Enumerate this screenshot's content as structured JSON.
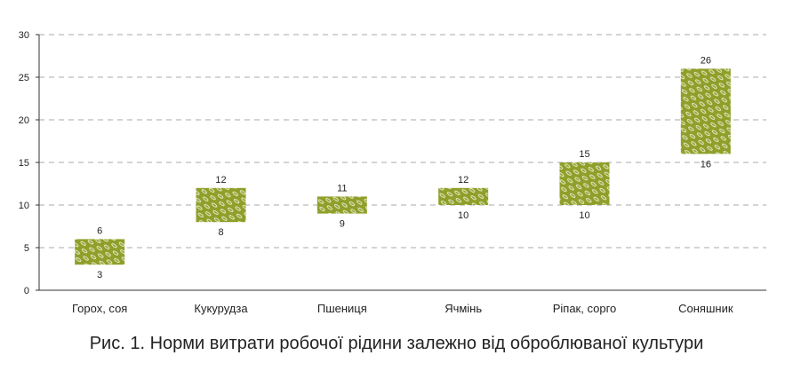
{
  "caption": "Рис. 1. Норми витрати робочої рідини залежно від оброблюваної культури",
  "colors": {
    "bar": "#8f9f2a",
    "grid": "#aaaaaa",
    "axis": "#333333"
  },
  "chart_data": {
    "type": "bar",
    "subtype": "floating-range",
    "categories": [
      "Горох, соя",
      "Кукурудза",
      "Пшениця",
      "Ячмінь",
      "Ріпак, сорго",
      "Соняшник"
    ],
    "low": [
      3,
      8,
      9,
      10,
      10,
      16
    ],
    "high": [
      6,
      12,
      11,
      12,
      15,
      26
    ],
    "ylim": [
      0,
      30
    ],
    "yticks": [
      0,
      5,
      10,
      15,
      20,
      25,
      30
    ],
    "grid": true,
    "legend": "none"
  }
}
